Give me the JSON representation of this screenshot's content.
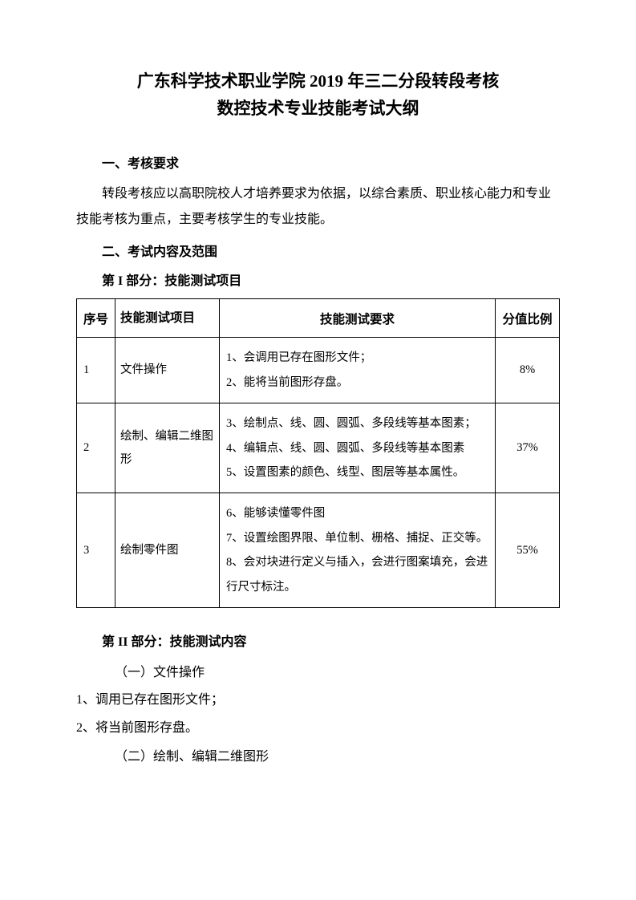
{
  "title": {
    "line1": "广东科学技术职业学院 2019 年三二分段转段考核",
    "line2": "数控技术专业技能考试大纲"
  },
  "section1": {
    "heading": "一、考核要求",
    "paragraph": "转段考核应以高职院校人才培养要求为依据，以综合素质、职业核心能力和专业技能考核为重点，主要考核学生的专业技能。"
  },
  "section2": {
    "heading": "二、考试内容及范围",
    "part1_heading": "第 I 部分：技能测试项目",
    "part2_heading": "第 II 部分：技能测试内容"
  },
  "table": {
    "headers": {
      "seq": "序号",
      "item": "技能测试项目",
      "req": "技能测试要求",
      "score": "分值比例"
    },
    "rows": [
      {
        "seq": "1",
        "item": "文件操作",
        "req": "1、会调用已存在图形文件；\n2、能将当前图形存盘。",
        "score": "8%"
      },
      {
        "seq": "2",
        "item": "绘制、编辑二维图形",
        "req": "3、绘制点、线、圆、圆弧、多段线等基本图素；\n4、编辑点、线、圆、圆弧、多段线等基本图素\n5、设置图素的颜色、线型、图层等基本属性。",
        "score": "37%"
      },
      {
        "seq": "3",
        "item": "绘制零件图",
        "req": "6、能够读懂零件图\n7、设置绘图界限、单位制、栅格、捕捉、正交等。\n8、会对块进行定义与插入，会进行图案填充，会进行尺寸标注。",
        "score": "55%"
      }
    ]
  },
  "part2": {
    "sub1_title": "（一）文件操作",
    "sub1_item1": "1、调用已存在图形文件；",
    "sub1_item2": "2、将当前图形存盘。",
    "sub2_title": "（二）绘制、编辑二维图形"
  }
}
